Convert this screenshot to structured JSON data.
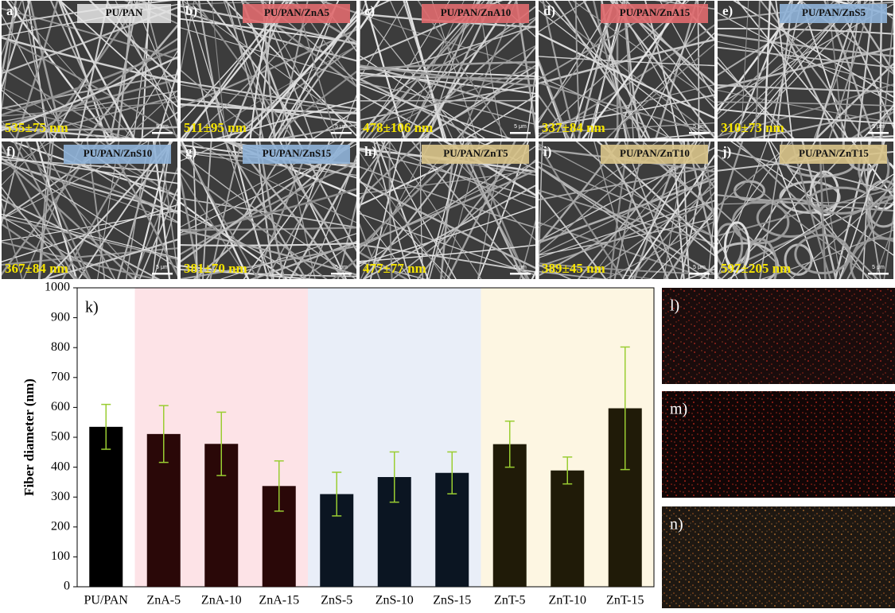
{
  "panels": [
    {
      "letter": "a)",
      "tag": "PU/PAN",
      "tag_color": "#e8e8e8",
      "diameter": "535±75 nm"
    },
    {
      "letter": "b)",
      "tag": "PU/PAN/ZnA5",
      "tag_color": "#e06a6e",
      "diameter": "511±95 nm"
    },
    {
      "letter": "c)",
      "tag": "PU/PAN/ZnA10",
      "tag_color": "#e06a6e",
      "diameter": "478±106 nm"
    },
    {
      "letter": "d)",
      "tag": "PU/PAN/ZnA15",
      "tag_color": "#e06a6e",
      "diameter": "337±84 nm"
    },
    {
      "letter": "e)",
      "tag": "PU/PAN/ZnS5",
      "tag_color": "#8fb2d8",
      "diameter": "310±73 nm"
    },
    {
      "letter": "f)",
      "tag": "PU/PAN/ZnS10",
      "tag_color": "#8fb2d8",
      "diameter": "367±84 nm"
    },
    {
      "letter": "g)",
      "tag": "PU/PAN/ZnS15",
      "tag_color": "#8fb2d8",
      "diameter": "381±70 nm"
    },
    {
      "letter": "h)",
      "tag": "PU/PAN/ZnT5",
      "tag_color": "#d9c489",
      "diameter": "477±77 nm"
    },
    {
      "letter": "i)",
      "tag": "PU/PAN/ZnT10",
      "tag_color": "#d9c489",
      "diameter": "389±45 nm"
    },
    {
      "letter": "j)",
      "tag": "PU/PAN/ZnT15",
      "tag_color": "#d9c489",
      "diameter": "597±205 nm"
    }
  ],
  "scale_bar": "5 μm",
  "maps": [
    "l)",
    "m)",
    "n)"
  ],
  "chart_data": {
    "type": "bar",
    "panel_label": "k)",
    "y_label": "Fiber diameter (nm)",
    "categories": [
      "PU/PAN",
      "ZnA-5",
      "ZnA-10",
      "ZnA-15",
      "ZnS-5",
      "ZnS-10",
      "ZnS-15",
      "ZnT-5",
      "ZnT-10",
      "ZnT-15"
    ],
    "values": [
      535,
      511,
      478,
      337,
      310,
      367,
      381,
      477,
      389,
      597
    ],
    "errors": [
      75,
      95,
      106,
      84,
      73,
      84,
      70,
      77,
      45,
      205
    ],
    "colors": [
      "#000000",
      "#2a0808",
      "#2a0808",
      "#2a0808",
      "#0b1522",
      "#0b1522",
      "#0b1522",
      "#201b08",
      "#201b08",
      "#201b08"
    ],
    "band_colors": [
      "#ffffff",
      "#fde3e7",
      "#fde3e7",
      "#fde3e7",
      "#e9eef8",
      "#e9eef8",
      "#e9eef8",
      "#fdf6e2",
      "#fdf6e2",
      "#fdf6e2"
    ],
    "error_color": "#9acd32",
    "ylim": [
      0,
      1000
    ],
    "yticks": [
      0,
      100,
      200,
      300,
      400,
      500,
      600,
      700,
      800,
      900,
      1000
    ]
  }
}
